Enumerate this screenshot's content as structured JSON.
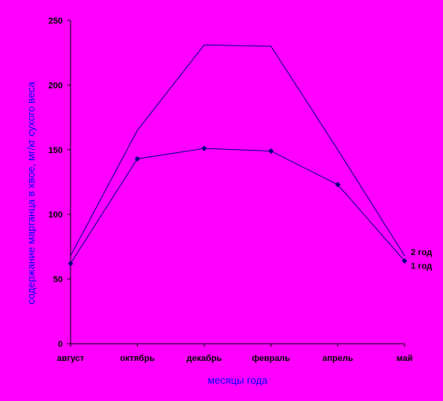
{
  "chart_data": {
    "type": "line",
    "title": "",
    "xlabel": "месяцы года",
    "ylabel": "содержание марганца в хвое, мг/кг сухого веса",
    "categories": [
      "август",
      "октябрь",
      "декабрь",
      "февраль",
      "апрель",
      "май"
    ],
    "ylim": [
      0,
      250
    ],
    "yticks": [
      "0",
      "50",
      "100",
      "150",
      "200",
      "250"
    ],
    "grid": false,
    "legend": "none",
    "series": [
      {
        "name": "1 год",
        "values": [
          62,
          143,
          151,
          149,
          123,
          64
        ],
        "markers": true,
        "color": "#000080"
      },
      {
        "name": "2 год",
        "values": [
          68,
          165,
          231,
          230,
          150,
          68
        ],
        "markers": false,
        "color": "#000080"
      }
    ]
  }
}
